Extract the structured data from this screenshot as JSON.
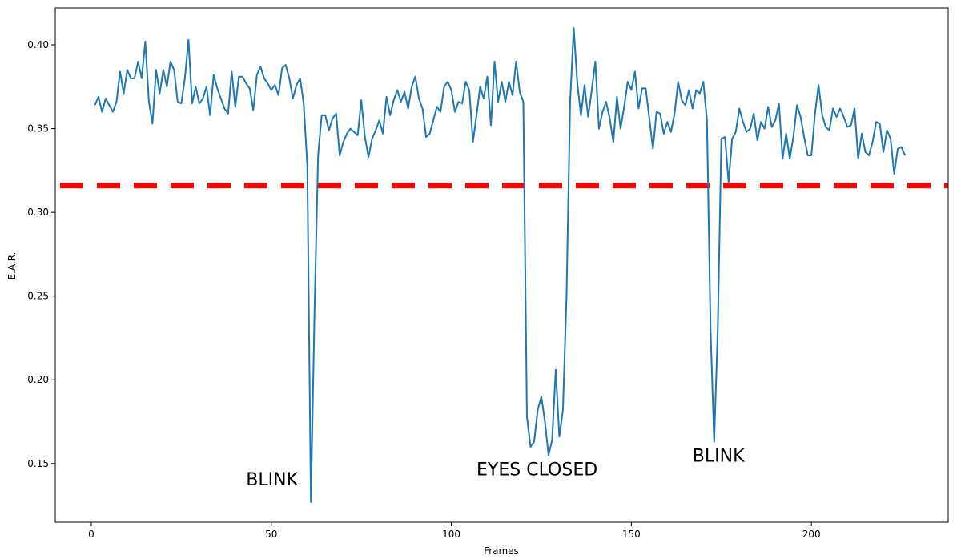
{
  "chart_data": {
    "type": "line",
    "xlabel": "Frames",
    "ylabel": "E.A.R.",
    "xlim": [
      -10,
      238
    ],
    "ylim": [
      0.115,
      0.422
    ],
    "x_ticks": [
      0,
      50,
      100,
      150,
      200
    ],
    "y_ticks": [
      0.15,
      0.2,
      0.25,
      0.3,
      0.35,
      0.4
    ],
    "y_tick_labels": [
      "0.15",
      "0.20",
      "0.25",
      "0.30",
      "0.35",
      "0.40"
    ],
    "grid": false,
    "threshold": {
      "value": 0.316,
      "color": "#ff0000",
      "style": "dashed"
    },
    "series": [
      {
        "color": "#1f77b4",
        "x_start": 1,
        "values": [
          0.364,
          0.369,
          0.36,
          0.368,
          0.364,
          0.36,
          0.366,
          0.384,
          0.371,
          0.385,
          0.38,
          0.38,
          0.39,
          0.38,
          0.402,
          0.366,
          0.353,
          0.385,
          0.371,
          0.385,
          0.375,
          0.39,
          0.385,
          0.366,
          0.365,
          0.38,
          0.403,
          0.365,
          0.375,
          0.365,
          0.368,
          0.375,
          0.358,
          0.382,
          0.374,
          0.368,
          0.362,
          0.359,
          0.384,
          0.363,
          0.381,
          0.381,
          0.377,
          0.374,
          0.361,
          0.382,
          0.387,
          0.38,
          0.377,
          0.373,
          0.376,
          0.37,
          0.386,
          0.388,
          0.38,
          0.368,
          0.376,
          0.38,
          0.365,
          0.328,
          0.127,
          0.24,
          0.334,
          0.358,
          0.358,
          0.349,
          0.356,
          0.359,
          0.334,
          0.342,
          0.347,
          0.35,
          0.348,
          0.346,
          0.367,
          0.345,
          0.333,
          0.344,
          0.349,
          0.355,
          0.347,
          0.369,
          0.358,
          0.367,
          0.373,
          0.366,
          0.372,
          0.362,
          0.375,
          0.381,
          0.368,
          0.362,
          0.345,
          0.347,
          0.355,
          0.363,
          0.36,
          0.375,
          0.378,
          0.373,
          0.36,
          0.366,
          0.365,
          0.378,
          0.373,
          0.342,
          0.358,
          0.375,
          0.368,
          0.381,
          0.352,
          0.39,
          0.366,
          0.378,
          0.366,
          0.378,
          0.37,
          0.39,
          0.372,
          0.366,
          0.178,
          0.16,
          0.163,
          0.182,
          0.19,
          0.175,
          0.155,
          0.164,
          0.206,
          0.166,
          0.182,
          0.25,
          0.366,
          0.41,
          0.377,
          0.358,
          0.376,
          0.357,
          0.373,
          0.39,
          0.35,
          0.36,
          0.366,
          0.356,
          0.342,
          0.369,
          0.35,
          0.363,
          0.378,
          0.373,
          0.384,
          0.362,
          0.374,
          0.374,
          0.356,
          0.338,
          0.36,
          0.359,
          0.347,
          0.354,
          0.348,
          0.359,
          0.378,
          0.367,
          0.364,
          0.373,
          0.362,
          0.373,
          0.371,
          0.378,
          0.355,
          0.23,
          0.163,
          0.23,
          0.344,
          0.345,
          0.318,
          0.344,
          0.348,
          0.362,
          0.354,
          0.348,
          0.35,
          0.359,
          0.343,
          0.354,
          0.35,
          0.363,
          0.351,
          0.355,
          0.365,
          0.332,
          0.347,
          0.332,
          0.345,
          0.364,
          0.357,
          0.345,
          0.334,
          0.334,
          0.359,
          0.376,
          0.358,
          0.351,
          0.349,
          0.362,
          0.357,
          0.362,
          0.357,
          0.351,
          0.352,
          0.362,
          0.332,
          0.347,
          0.336,
          0.334,
          0.342,
          0.354,
          0.353,
          0.336,
          0.349,
          0.344,
          0.323,
          0.338,
          0.339,
          0.334
        ]
      }
    ],
    "annotations": [
      {
        "text": "BLINK",
        "x": 43,
        "y": 0.137
      },
      {
        "text": "EYES CLOSED",
        "x": 107,
        "y": 0.143
      },
      {
        "text": "BLINK",
        "x": 167,
        "y": 0.151
      }
    ]
  }
}
